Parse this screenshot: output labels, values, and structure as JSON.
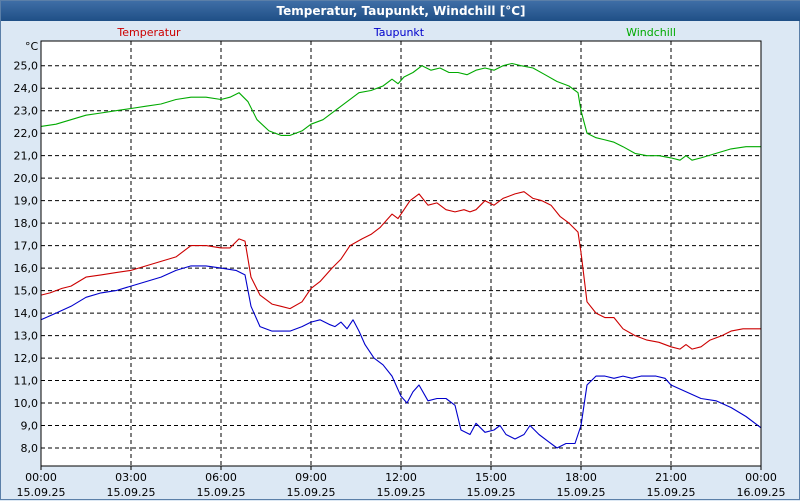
{
  "window_title": "Temperatur, Taupunkt, Windchill [°C]",
  "chart_data": {
    "type": "line",
    "title": "Temperatur, Taupunkt, Windchill [°C]",
    "ylabel": "°C",
    "ylim": [
      7.2,
      26.1
    ],
    "xlim": [
      0,
      24
    ],
    "yticks": [
      8,
      9,
      10,
      11,
      12,
      13,
      14,
      15,
      16,
      17,
      18,
      19,
      20,
      21,
      22,
      23,
      24,
      25
    ],
    "ytick_labels": [
      "8,0",
      "9,0",
      "10,0",
      "11,0",
      "12,0",
      "13,0",
      "14,0",
      "15,0",
      "16,0",
      "17,0",
      "18,0",
      "19,0",
      "20,0",
      "21,0",
      "22,0",
      "23,0",
      "24,0",
      "25,0"
    ],
    "xticks": [
      {
        "hours": 0,
        "time": "00:00",
        "date": "15.09.25"
      },
      {
        "hours": 3,
        "time": "03:00",
        "date": "15.09.25"
      },
      {
        "hours": 6,
        "time": "06:00",
        "date": "15.09.25"
      },
      {
        "hours": 9,
        "time": "09:00",
        "date": "15.09.25"
      },
      {
        "hours": 12,
        "time": "12:00",
        "date": "15.09.25"
      },
      {
        "hours": 15,
        "time": "15:00",
        "date": "15.09.25"
      },
      {
        "hours": 18,
        "time": "18:00",
        "date": "15.09.25"
      },
      {
        "hours": 21,
        "time": "21:00",
        "date": "15.09.25"
      },
      {
        "hours": 24,
        "time": "00:00",
        "date": "16.09.25"
      }
    ],
    "grid": true,
    "series": [
      {
        "name": "Temperatur",
        "color": "#cc0000",
        "points": [
          [
            0,
            14.8
          ],
          [
            0.3,
            14.9
          ],
          [
            0.7,
            15.1
          ],
          [
            1,
            15.2
          ],
          [
            1.5,
            15.6
          ],
          [
            2,
            15.7
          ],
          [
            2.5,
            15.8
          ],
          [
            3,
            15.9
          ],
          [
            3.5,
            16.1
          ],
          [
            4,
            16.3
          ],
          [
            4.5,
            16.5
          ],
          [
            5,
            17.0
          ],
          [
            5.5,
            17.0
          ],
          [
            6,
            16.9
          ],
          [
            6.3,
            16.9
          ],
          [
            6.6,
            17.3
          ],
          [
            6.8,
            17.2
          ],
          [
            7,
            15.6
          ],
          [
            7.3,
            14.8
          ],
          [
            7.7,
            14.4
          ],
          [
            8,
            14.3
          ],
          [
            8.3,
            14.2
          ],
          [
            8.7,
            14.5
          ],
          [
            9,
            15.1
          ],
          [
            9.3,
            15.4
          ],
          [
            9.7,
            16.0
          ],
          [
            10,
            16.4
          ],
          [
            10.3,
            17.0
          ],
          [
            10.7,
            17.3
          ],
          [
            11,
            17.5
          ],
          [
            11.3,
            17.8
          ],
          [
            11.7,
            18.4
          ],
          [
            11.9,
            18.2
          ],
          [
            12.1,
            18.6
          ],
          [
            12.3,
            19.0
          ],
          [
            12.6,
            19.3
          ],
          [
            12.9,
            18.8
          ],
          [
            13.2,
            18.9
          ],
          [
            13.5,
            18.6
          ],
          [
            13.8,
            18.5
          ],
          [
            14.1,
            18.6
          ],
          [
            14.3,
            18.5
          ],
          [
            14.5,
            18.6
          ],
          [
            14.8,
            19.0
          ],
          [
            15.1,
            18.8
          ],
          [
            15.4,
            19.1
          ],
          [
            15.8,
            19.3
          ],
          [
            16.1,
            19.4
          ],
          [
            16.4,
            19.1
          ],
          [
            16.7,
            19.0
          ],
          [
            17,
            18.8
          ],
          [
            17.3,
            18.3
          ],
          [
            17.6,
            18.0
          ],
          [
            17.9,
            17.6
          ],
          [
            18,
            16.7
          ],
          [
            18.2,
            14.5
          ],
          [
            18.5,
            14.0
          ],
          [
            18.8,
            13.8
          ],
          [
            19.1,
            13.8
          ],
          [
            19.4,
            13.3
          ],
          [
            19.8,
            13.0
          ],
          [
            20.2,
            12.8
          ],
          [
            20.6,
            12.7
          ],
          [
            21,
            12.5
          ],
          [
            21.3,
            12.4
          ],
          [
            21.5,
            12.6
          ],
          [
            21.7,
            12.4
          ],
          [
            22,
            12.5
          ],
          [
            22.3,
            12.8
          ],
          [
            22.7,
            13.0
          ],
          [
            23,
            13.2
          ],
          [
            23.4,
            13.3
          ],
          [
            24,
            13.3
          ]
        ]
      },
      {
        "name": "Taupunkt",
        "color": "#0000cc",
        "points": [
          [
            0,
            13.7
          ],
          [
            0.5,
            14.0
          ],
          [
            1,
            14.3
          ],
          [
            1.5,
            14.7
          ],
          [
            2,
            14.9
          ],
          [
            2.5,
            15.0
          ],
          [
            3,
            15.2
          ],
          [
            3.5,
            15.4
          ],
          [
            4,
            15.6
          ],
          [
            4.5,
            15.9
          ],
          [
            5,
            16.1
          ],
          [
            5.5,
            16.1
          ],
          [
            6,
            16.0
          ],
          [
            6.5,
            15.9
          ],
          [
            6.8,
            15.7
          ],
          [
            7,
            14.3
          ],
          [
            7.3,
            13.4
          ],
          [
            7.7,
            13.2
          ],
          [
            8,
            13.2
          ],
          [
            8.3,
            13.2
          ],
          [
            8.7,
            13.4
          ],
          [
            9,
            13.6
          ],
          [
            9.3,
            13.7
          ],
          [
            9.6,
            13.5
          ],
          [
            9.8,
            13.4
          ],
          [
            10,
            13.6
          ],
          [
            10.2,
            13.3
          ],
          [
            10.4,
            13.7
          ],
          [
            10.6,
            13.2
          ],
          [
            10.8,
            12.6
          ],
          [
            11.1,
            12.0
          ],
          [
            11.4,
            11.7
          ],
          [
            11.7,
            11.2
          ],
          [
            12,
            10.3
          ],
          [
            12.2,
            10.0
          ],
          [
            12.4,
            10.5
          ],
          [
            12.6,
            10.8
          ],
          [
            12.9,
            10.1
          ],
          [
            13.2,
            10.2
          ],
          [
            13.5,
            10.2
          ],
          [
            13.8,
            9.9
          ],
          [
            14,
            8.8
          ],
          [
            14.3,
            8.6
          ],
          [
            14.5,
            9.1
          ],
          [
            14.8,
            8.7
          ],
          [
            15.1,
            8.8
          ],
          [
            15.3,
            9.0
          ],
          [
            15.5,
            8.6
          ],
          [
            15.8,
            8.4
          ],
          [
            16.1,
            8.6
          ],
          [
            16.3,
            9.0
          ],
          [
            16.6,
            8.6
          ],
          [
            16.9,
            8.3
          ],
          [
            17.2,
            8.0
          ],
          [
            17.5,
            8.2
          ],
          [
            17.8,
            8.2
          ],
          [
            18,
            9.0
          ],
          [
            18.2,
            10.8
          ],
          [
            18.5,
            11.2
          ],
          [
            18.8,
            11.2
          ],
          [
            19.1,
            11.1
          ],
          [
            19.4,
            11.2
          ],
          [
            19.7,
            11.1
          ],
          [
            20,
            11.2
          ],
          [
            20.5,
            11.2
          ],
          [
            20.8,
            11.1
          ],
          [
            21,
            10.8
          ],
          [
            21.5,
            10.5
          ],
          [
            22,
            10.2
          ],
          [
            22.5,
            10.1
          ],
          [
            23,
            9.8
          ],
          [
            23.5,
            9.4
          ],
          [
            24,
            8.9
          ]
        ]
      },
      {
        "name": "Windchill",
        "color": "#00aa00",
        "points": [
          [
            0,
            22.3
          ],
          [
            0.5,
            22.4
          ],
          [
            1,
            22.6
          ],
          [
            1.5,
            22.8
          ],
          [
            2,
            22.9
          ],
          [
            2.5,
            23.0
          ],
          [
            3,
            23.1
          ],
          [
            3.5,
            23.2
          ],
          [
            4,
            23.3
          ],
          [
            4.5,
            23.5
          ],
          [
            5,
            23.6
          ],
          [
            5.5,
            23.6
          ],
          [
            6,
            23.5
          ],
          [
            6.3,
            23.6
          ],
          [
            6.6,
            23.8
          ],
          [
            6.9,
            23.4
          ],
          [
            7.2,
            22.6
          ],
          [
            7.6,
            22.1
          ],
          [
            8,
            21.9
          ],
          [
            8.3,
            21.9
          ],
          [
            8.7,
            22.1
          ],
          [
            9,
            22.4
          ],
          [
            9.4,
            22.6
          ],
          [
            9.8,
            23.0
          ],
          [
            10.2,
            23.4
          ],
          [
            10.6,
            23.8
          ],
          [
            11,
            23.9
          ],
          [
            11.4,
            24.1
          ],
          [
            11.7,
            24.4
          ],
          [
            11.9,
            24.2
          ],
          [
            12.1,
            24.5
          ],
          [
            12.4,
            24.7
          ],
          [
            12.7,
            25.0
          ],
          [
            13,
            24.8
          ],
          [
            13.3,
            24.9
          ],
          [
            13.6,
            24.7
          ],
          [
            13.9,
            24.7
          ],
          [
            14.2,
            24.6
          ],
          [
            14.5,
            24.8
          ],
          [
            14.8,
            24.9
          ],
          [
            15.1,
            24.8
          ],
          [
            15.4,
            25.0
          ],
          [
            15.7,
            25.1
          ],
          [
            16,
            25.0
          ],
          [
            16.4,
            24.9
          ],
          [
            16.8,
            24.6
          ],
          [
            17.2,
            24.3
          ],
          [
            17.6,
            24.1
          ],
          [
            17.9,
            23.8
          ],
          [
            18,
            23.0
          ],
          [
            18.2,
            22.0
          ],
          [
            18.5,
            21.8
          ],
          [
            18.8,
            21.7
          ],
          [
            19.1,
            21.6
          ],
          [
            19.4,
            21.4
          ],
          [
            19.8,
            21.1
          ],
          [
            20.2,
            21.0
          ],
          [
            20.6,
            21.0
          ],
          [
            21,
            20.9
          ],
          [
            21.3,
            20.8
          ],
          [
            21.5,
            21.0
          ],
          [
            21.7,
            20.8
          ],
          [
            22,
            20.9
          ],
          [
            22.5,
            21.1
          ],
          [
            23,
            21.3
          ],
          [
            23.5,
            21.4
          ],
          [
            24,
            21.4
          ]
        ]
      }
    ]
  }
}
